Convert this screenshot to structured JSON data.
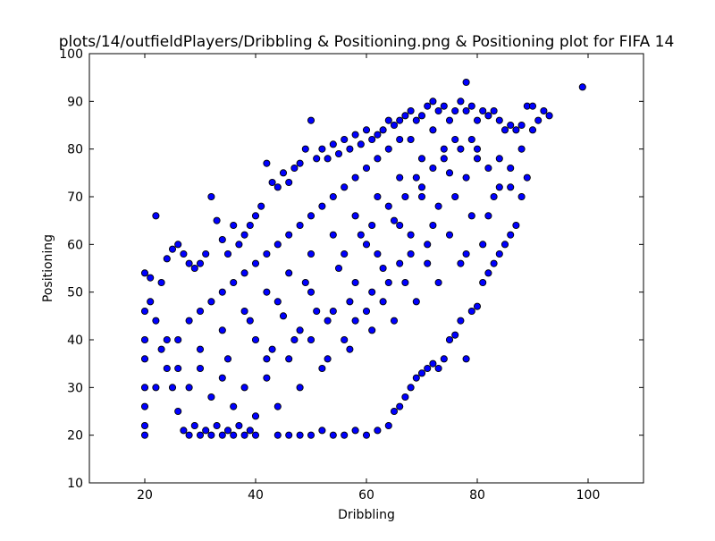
{
  "chart_data": {
    "type": "scatter",
    "title": "plots/14/outfieldPlayers/Dribbling & Positioning.png & Positioning plot for FIFA 14",
    "xlabel": "Dribbling",
    "ylabel": "Positioning",
    "xlim": [
      10,
      110
    ],
    "ylim": [
      10,
      100
    ],
    "xticks": [
      "20",
      "40",
      "60",
      "80",
      "100"
    ],
    "yticks": [
      "10",
      "20",
      "30",
      "40",
      "50",
      "60",
      "70",
      "80",
      "90",
      "100"
    ],
    "grid": false,
    "legend": "none",
    "marker_color": "#0000ff",
    "marker_edge": "#000000",
    "series": [
      {
        "points": [
          [
            99,
            93
          ],
          [
            78,
            94
          ],
          [
            92,
            88
          ],
          [
            91,
            86
          ],
          [
            93,
            87
          ],
          [
            89,
            89
          ],
          [
            90,
            89
          ],
          [
            88,
            85
          ],
          [
            87,
            84
          ],
          [
            86,
            85
          ],
          [
            85,
            84
          ],
          [
            84,
            86
          ],
          [
            83,
            88
          ],
          [
            82,
            87
          ],
          [
            81,
            88
          ],
          [
            80,
            86
          ],
          [
            79,
            89
          ],
          [
            78,
            88
          ],
          [
            77,
            90
          ],
          [
            76,
            88
          ],
          [
            75,
            86
          ],
          [
            74,
            89
          ],
          [
            73,
            88
          ],
          [
            72,
            90
          ],
          [
            71,
            89
          ],
          [
            70,
            87
          ],
          [
            69,
            86
          ],
          [
            68,
            88
          ],
          [
            67,
            87
          ],
          [
            66,
            86
          ],
          [
            65,
            85
          ],
          [
            64,
            86
          ],
          [
            63,
            84
          ],
          [
            62,
            83
          ],
          [
            61,
            82
          ],
          [
            60,
            84
          ],
          [
            59,
            81
          ],
          [
            58,
            83
          ],
          [
            57,
            80
          ],
          [
            56,
            82
          ],
          [
            55,
            79
          ],
          [
            54,
            81
          ],
          [
            53,
            78
          ],
          [
            52,
            80
          ],
          [
            51,
            78
          ],
          [
            50,
            86
          ],
          [
            49,
            80
          ],
          [
            48,
            77
          ],
          [
            47,
            76
          ],
          [
            46,
            73
          ],
          [
            45,
            75
          ],
          [
            44,
            72
          ],
          [
            43,
            73
          ],
          [
            42,
            77
          ],
          [
            41,
            68
          ],
          [
            40,
            66
          ],
          [
            39,
            64
          ],
          [
            38,
            62
          ],
          [
            37,
            60
          ],
          [
            36,
            64
          ],
          [
            35,
            58
          ],
          [
            34,
            61
          ],
          [
            33,
            65
          ],
          [
            32,
            70
          ],
          [
            31,
            58
          ],
          [
            30,
            56
          ],
          [
            29,
            55
          ],
          [
            28,
            56
          ],
          [
            27,
            58
          ],
          [
            26,
            60
          ],
          [
            25,
            59
          ],
          [
            24,
            57
          ],
          [
            23,
            52
          ],
          [
            22,
            66
          ],
          [
            21,
            53
          ],
          [
            20,
            54
          ],
          [
            20,
            46
          ],
          [
            20,
            40
          ],
          [
            20,
            36
          ],
          [
            20,
            30
          ],
          [
            20,
            26
          ],
          [
            20,
            22
          ],
          [
            20,
            20
          ],
          [
            21,
            48
          ],
          [
            22,
            44
          ],
          [
            23,
            38
          ],
          [
            24,
            34
          ],
          [
            25,
            30
          ],
          [
            26,
            25
          ],
          [
            27,
            21
          ],
          [
            28,
            20
          ],
          [
            29,
            22
          ],
          [
            30,
            20
          ],
          [
            31,
            21
          ],
          [
            32,
            20
          ],
          [
            33,
            22
          ],
          [
            34,
            20
          ],
          [
            35,
            21
          ],
          [
            36,
            20
          ],
          [
            37,
            22
          ],
          [
            38,
            20
          ],
          [
            39,
            21
          ],
          [
            40,
            20
          ],
          [
            44,
            20
          ],
          [
            46,
            20
          ],
          [
            48,
            20
          ],
          [
            50,
            20
          ],
          [
            52,
            21
          ],
          [
            54,
            20
          ],
          [
            56,
            20
          ],
          [
            58,
            21
          ],
          [
            60,
            20
          ],
          [
            62,
            21
          ],
          [
            64,
            22
          ],
          [
            65,
            25
          ],
          [
            66,
            26
          ],
          [
            67,
            28
          ],
          [
            68,
            30
          ],
          [
            69,
            32
          ],
          [
            70,
            33
          ],
          [
            71,
            34
          ],
          [
            72,
            35
          ],
          [
            73,
            34
          ],
          [
            74,
            36
          ],
          [
            75,
            40
          ],
          [
            76,
            41
          ],
          [
            77,
            44
          ],
          [
            78,
            36
          ],
          [
            79,
            46
          ],
          [
            80,
            47
          ],
          [
            81,
            52
          ],
          [
            82,
            54
          ],
          [
            83,
            56
          ],
          [
            84,
            58
          ],
          [
            85,
            60
          ],
          [
            86,
            62
          ],
          [
            87,
            64
          ],
          [
            88,
            70
          ],
          [
            89,
            74
          ],
          [
            78,
            58
          ],
          [
            82,
            66
          ],
          [
            84,
            72
          ],
          [
            86,
            76
          ],
          [
            80,
            78
          ],
          [
            74,
            80
          ],
          [
            70,
            78
          ],
          [
            66,
            74
          ],
          [
            62,
            70
          ],
          [
            58,
            66
          ],
          [
            54,
            62
          ],
          [
            50,
            58
          ],
          [
            46,
            54
          ],
          [
            42,
            50
          ],
          [
            38,
            46
          ],
          [
            34,
            42
          ],
          [
            30,
            38
          ],
          [
            26,
            34
          ],
          [
            22,
            30
          ],
          [
            24,
            40
          ],
          [
            28,
            44
          ],
          [
            32,
            48
          ],
          [
            36,
            52
          ],
          [
            40,
            56
          ],
          [
            44,
            60
          ],
          [
            48,
            64
          ],
          [
            52,
            68
          ],
          [
            56,
            72
          ],
          [
            60,
            76
          ],
          [
            64,
            80
          ],
          [
            68,
            82
          ],
          [
            72,
            84
          ],
          [
            76,
            82
          ],
          [
            80,
            80
          ],
          [
            84,
            78
          ],
          [
            88,
            80
          ],
          [
            90,
            84
          ],
          [
            76,
            70
          ],
          [
            72,
            64
          ],
          [
            68,
            58
          ],
          [
            64,
            52
          ],
          [
            60,
            46
          ],
          [
            56,
            40
          ],
          [
            52,
            34
          ],
          [
            48,
            30
          ],
          [
            44,
            26
          ],
          [
            40,
            24
          ],
          [
            36,
            26
          ],
          [
            32,
            28
          ],
          [
            28,
            30
          ],
          [
            26,
            40
          ],
          [
            30,
            46
          ],
          [
            34,
            50
          ],
          [
            38,
            54
          ],
          [
            42,
            58
          ],
          [
            46,
            62
          ],
          [
            50,
            66
          ],
          [
            54,
            70
          ],
          [
            58,
            74
          ],
          [
            62,
            78
          ],
          [
            66,
            82
          ],
          [
            70,
            70
          ],
          [
            66,
            64
          ],
          [
            62,
            58
          ],
          [
            58,
            52
          ],
          [
            54,
            46
          ],
          [
            50,
            40
          ],
          [
            46,
            36
          ],
          [
            42,
            32
          ],
          [
            38,
            30
          ],
          [
            34,
            32
          ],
          [
            30,
            34
          ],
          [
            55,
            55
          ],
          [
            60,
            60
          ],
          [
            65,
            65
          ],
          [
            70,
            72
          ],
          [
            75,
            75
          ],
          [
            45,
            45
          ],
          [
            40,
            40
          ],
          [
            35,
            36
          ],
          [
            50,
            50
          ],
          [
            57,
            48
          ],
          [
            63,
            55
          ],
          [
            68,
            62
          ],
          [
            73,
            68
          ],
          [
            78,
            74
          ],
          [
            82,
            76
          ],
          [
            53,
            44
          ],
          [
            48,
            42
          ],
          [
            43,
            38
          ],
          [
            61,
            50
          ],
          [
            66,
            56
          ],
          [
            71,
            60
          ],
          [
            59,
            62
          ],
          [
            64,
            68
          ],
          [
            69,
            74
          ],
          [
            74,
            78
          ],
          [
            79,
            82
          ],
          [
            49,
            52
          ],
          [
            44,
            48
          ],
          [
            39,
            44
          ],
          [
            56,
            58
          ],
          [
            61,
            64
          ],
          [
            67,
            70
          ],
          [
            72,
            76
          ],
          [
            77,
            80
          ],
          [
            51,
            46
          ],
          [
            47,
            40
          ],
          [
            42,
            36
          ],
          [
            58,
            44
          ],
          [
            63,
            48
          ],
          [
            67,
            52
          ],
          [
            71,
            56
          ],
          [
            75,
            62
          ],
          [
            79,
            66
          ],
          [
            83,
            70
          ],
          [
            86,
            72
          ],
          [
            53,
            36
          ],
          [
            57,
            38
          ],
          [
            61,
            42
          ],
          [
            65,
            44
          ],
          [
            69,
            48
          ],
          [
            73,
            52
          ],
          [
            77,
            56
          ],
          [
            81,
            60
          ]
        ]
      }
    ]
  }
}
